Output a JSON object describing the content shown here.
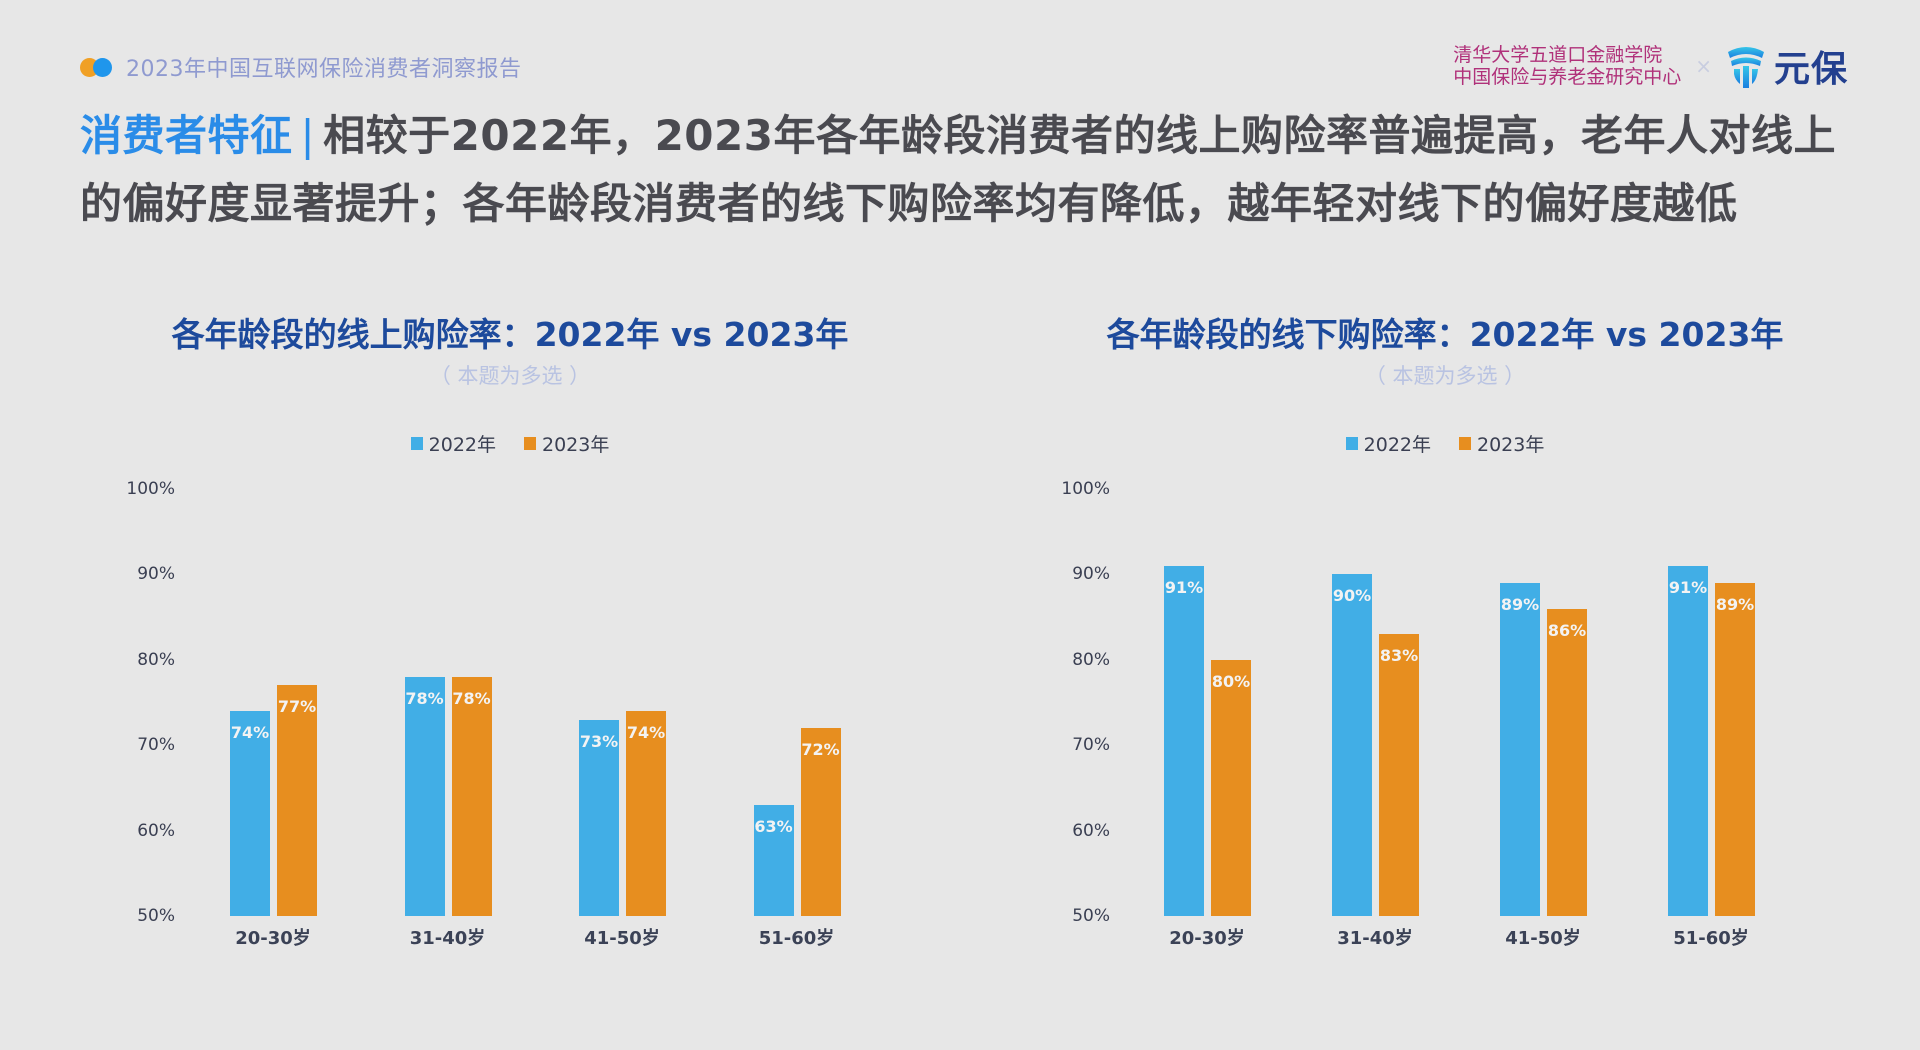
{
  "header": {
    "report_title": "2023年中国互联网保险消费者洞察报告",
    "institution_line1": "清华大学五道口金融学院",
    "institution_line2": "中国保险与养老金研究中心",
    "times": "×",
    "brand_name": "元保"
  },
  "headline": {
    "section": "消费者特征",
    "separator": "|",
    "text": "相较于2022年，2023年各年龄段消费者的线上购险率普遍提高，老年人对线上的偏好度显著提升；各年龄段消费者的线下购险率均有降低，越年轻对线下的偏好度越低"
  },
  "colors": {
    "series_2022": "#41aee6",
    "series_2023": "#e78e1f",
    "accent": "#2a8ce8",
    "chart_title": "#1d4a9c"
  },
  "charts": [
    {
      "title": "各年龄段的线上购险率：2022年 vs 2023年",
      "subtitle": "（ 本题为多选 ）",
      "legend": [
        "2022年",
        "2023年"
      ],
      "yticks": [
        "100%",
        "90%",
        "80%",
        "70%",
        "60%",
        "50%"
      ],
      "categories": [
        "20-30岁",
        "31-40岁",
        "41-50岁",
        "51-60岁"
      ],
      "labels_2022": [
        "74%",
        "78%",
        "73%",
        "63%"
      ],
      "labels_2023": [
        "77%",
        "78%",
        "74%",
        "72%"
      ]
    },
    {
      "title": "各年龄段的线下购险率：2022年 vs 2023年",
      "subtitle": "（ 本题为多选 ）",
      "legend": [
        "2022年",
        "2023年"
      ],
      "yticks": [
        "100%",
        "90%",
        "80%",
        "70%",
        "60%",
        "50%"
      ],
      "categories": [
        "20-30岁",
        "31-40岁",
        "41-50岁",
        "51-60岁"
      ],
      "labels_2022": [
        "91%",
        "90%",
        "89%",
        "91%"
      ],
      "labels_2023": [
        "80%",
        "83%",
        "86%",
        "89%"
      ]
    }
  ],
  "chart_data": [
    {
      "type": "bar",
      "title": "各年龄段的线上购险率：2022年 vs 2023年",
      "subtitle": "（本题为多选）",
      "categories": [
        "20-30岁",
        "31-40岁",
        "41-50岁",
        "51-60岁"
      ],
      "series": [
        {
          "name": "2022年",
          "values": [
            74,
            78,
            73,
            63
          ],
          "color": "#41aee6"
        },
        {
          "name": "2023年",
          "values": [
            77,
            78,
            74,
            72
          ],
          "color": "#e78e1f"
        }
      ],
      "xlabel": "",
      "ylabel": "",
      "ylim": [
        50,
        100
      ],
      "yticks": [
        50,
        60,
        70,
        80,
        90,
        100
      ],
      "tick_format": "percent",
      "grid": false,
      "legend_position": "top"
    },
    {
      "type": "bar",
      "title": "各年龄段的线下购险率：2022年 vs 2023年",
      "subtitle": "（本题为多选）",
      "categories": [
        "20-30岁",
        "31-40岁",
        "41-50岁",
        "51-60岁"
      ],
      "series": [
        {
          "name": "2022年",
          "values": [
            91,
            90,
            89,
            91
          ],
          "color": "#41aee6"
        },
        {
          "name": "2023年",
          "values": [
            80,
            83,
            86,
            89
          ],
          "color": "#e78e1f"
        }
      ],
      "xlabel": "",
      "ylabel": "",
      "ylim": [
        50,
        100
      ],
      "yticks": [
        50,
        60,
        70,
        80,
        90,
        100
      ],
      "tick_format": "percent",
      "grid": false,
      "legend_position": "top"
    }
  ]
}
